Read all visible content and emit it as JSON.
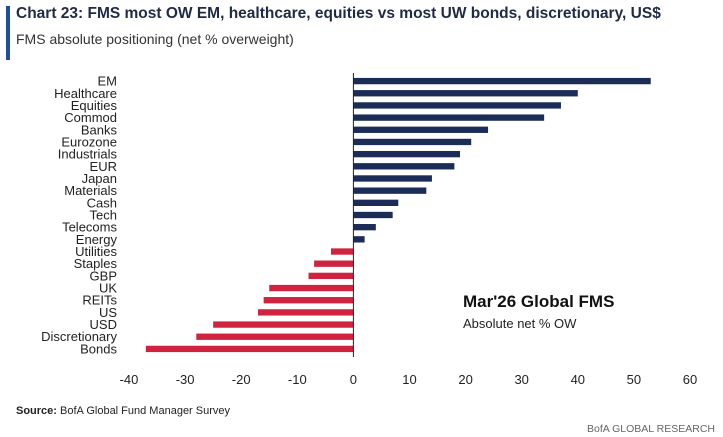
{
  "header": {
    "title": "Chart 23: FMS most OW EM, healthcare, equities vs most UW bonds, discretionary, US$",
    "subtitle": "FMS absolute positioning (net % overweight)"
  },
  "annotation": {
    "line1": "Mar'26 Global FMS",
    "line2": "Absolute net % OW"
  },
  "footer": {
    "source_label": "Source:",
    "source_text": "BofA Global Fund Manager Survey",
    "brand": "BofA GLOBAL RESEARCH"
  },
  "colors": {
    "positive": "#1b2d57",
    "negative": "#d0233f",
    "accent": "#1f4e9a"
  },
  "chart_data": {
    "type": "bar",
    "orientation": "horizontal",
    "categories": [
      "EM",
      "Healthcare",
      "Equities",
      "Commod",
      "Banks",
      "Eurozone",
      "Industrials",
      "EUR",
      "Japan",
      "Materials",
      "Cash",
      "Tech",
      "Telecoms",
      "Energy",
      "Utilities",
      "Staples",
      "GBP",
      "UK",
      "REITs",
      "US",
      "USD",
      "Discretionary",
      "Bonds"
    ],
    "values": [
      53,
      40,
      37,
      34,
      24,
      21,
      19,
      18,
      14,
      13,
      8,
      7,
      4,
      2,
      -4,
      -7,
      -8,
      -15,
      -16,
      -17,
      -25,
      -28,
      -37
    ],
    "xlim": [
      -40,
      60
    ],
    "xticks": [
      -40,
      -30,
      -20,
      -10,
      0,
      10,
      20,
      30,
      40,
      50,
      60
    ],
    "xlabel": "",
    "ylabel": "",
    "grid": false
  }
}
